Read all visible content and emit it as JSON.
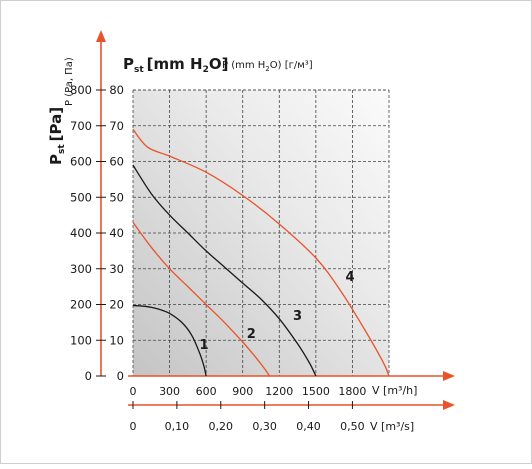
{
  "chart_data": {
    "type": "line",
    "titles": {
      "pst_main": "P",
      "pst_main_sub": "st",
      "pst_unit": "[mm H",
      "pst_unit_sub": "2",
      "pst_unit_end": "O]",
      "p_label": "P (mm H",
      "p_label_sub": "2",
      "p_label_end": "O) [г/м³]",
      "left_axis_title": "P",
      "left_axis_title_sub": "st",
      "left_axis_title_unit": "[Pa]",
      "left_axis_title2": "P (Pa, Па)"
    },
    "x_axis_1": {
      "label": "V [m³/h]",
      "ticks": [
        "0",
        "300",
        "600",
        "900",
        "1200",
        "1500",
        "1800"
      ],
      "range": [
        0,
        2100
      ]
    },
    "x_axis_2": {
      "label": "V [m³/s]",
      "ticks": [
        "0",
        "0,10",
        "0,20",
        "0,30",
        "0,40",
        "0,50"
      ]
    },
    "y_axis_mm": {
      "ticks": [
        "0",
        "10",
        "20",
        "30",
        "40",
        "50",
        "60",
        "70",
        "80"
      ],
      "range": [
        0,
        80
      ]
    },
    "y_axis_pa": {
      "ticks": [
        "0",
        "100",
        "200",
        "300",
        "400",
        "500",
        "600",
        "700",
        "800"
      ],
      "range": [
        0,
        800
      ]
    },
    "grid": true,
    "series": [
      {
        "name": "1",
        "color": "#1a1a1a",
        "x": [
          0,
          100,
          200,
          300,
          400,
          480,
          540,
          580,
          600
        ],
        "y": [
          19.7,
          19.5,
          18.8,
          17.5,
          15,
          11.5,
          7,
          3,
          0
        ]
      },
      {
        "name": "2",
        "color": "#e8532b",
        "x": [
          0,
          150,
          300,
          450,
          600,
          750,
          900,
          1000,
          1080,
          1120
        ],
        "y": [
          43,
          36,
          30,
          25,
          20,
          15,
          9.5,
          5.5,
          2,
          0
        ]
      },
      {
        "name": "3",
        "color": "#1a1a1a",
        "x": [
          0,
          150,
          300,
          450,
          600,
          750,
          900,
          1050,
          1200,
          1350,
          1450,
          1500
        ],
        "y": [
          59,
          51,
          45,
          40,
          35,
          30.5,
          26,
          21.5,
          16,
          9,
          3.5,
          0
        ]
      },
      {
        "name": "4",
        "color": "#e8532b",
        "x": [
          0,
          120,
          300,
          600,
          900,
          1200,
          1500,
          1700,
          1900,
          2050,
          2100
        ],
        "y": [
          69,
          64,
          61.5,
          57,
          50.5,
          42.5,
          33,
          24,
          13,
          4,
          0
        ]
      }
    ]
  }
}
